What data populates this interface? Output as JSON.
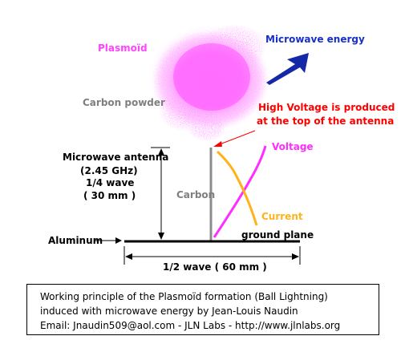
{
  "labels": {
    "plasmoid": "Plasmoïd",
    "microwave_energy": "Microwave energy",
    "carbon_powder": "Carbon powder",
    "high_voltage_line1": "High Voltage is produced",
    "high_voltage_line2": "at the top of the antenna",
    "antenna_line1": "Microwave antenna",
    "antenna_line2": "(2.45 GHz)",
    "antenna_line3": "1/4 wave",
    "antenna_line4": "( 30 mm )",
    "carbon": "Carbon",
    "voltage": "Voltage",
    "current": "Current",
    "ground_plane": "ground plane",
    "aluminum": "Aluminum",
    "half_wave": "1/2 wave ( 60 mm )"
  },
  "caption": {
    "line1": "Working principle of the Plasmoïd formation (Ball Lightning)",
    "line2": "induced with microwave energy by Jean-Louis Naudin",
    "line3": "Email: Jnaudin509@aol.com - JLN Labs - http://www.jlnlabs.org"
  },
  "colors": {
    "plasma": "#ff44ff",
    "microwave_label": "#1a2fc8",
    "microwave_bolt": "#1428a8",
    "carbon_label": "#7f7f7f",
    "high_voltage": "#ff0000",
    "voltage_curve": "#ff2dff",
    "current_curve": "#ffb31a",
    "antenna": "#8c8c8c"
  }
}
